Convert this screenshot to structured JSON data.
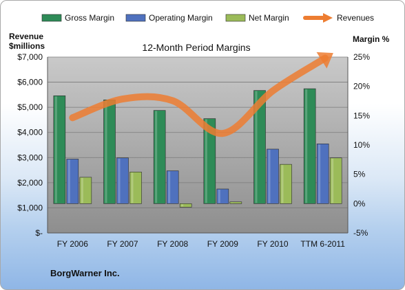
{
  "chart_data": {
    "type": "bar",
    "title": "12-Month Period Margins",
    "categories": [
      "FY 2006",
      "FY 2007",
      "FY 2008",
      "FY 2009",
      "FY 2010",
      "TTM 6-2011"
    ],
    "series": [
      {
        "name": "Gross Margin",
        "axis": "right",
        "unit": "%",
        "color": "#2e8b57",
        "values": [
          18.4,
          17.7,
          15.9,
          14.5,
          19.3,
          19.6
        ]
      },
      {
        "name": "Operating Margin",
        "axis": "right",
        "unit": "%",
        "color": "#4f71be",
        "values": [
          7.6,
          7.8,
          5.6,
          2.5,
          9.3,
          10.2
        ]
      },
      {
        "name": "Net Margin",
        "axis": "right",
        "unit": "%",
        "color": "#9bbb59",
        "values": [
          4.5,
          5.4,
          -0.6,
          0.3,
          6.7,
          7.8
        ]
      },
      {
        "name": "Revenues",
        "axis": "left",
        "unit": "$ millions",
        "color": "#ed7d31",
        "type": "line",
        "values": [
          4585,
          5329,
          5264,
          3962,
          5653,
          6900
        ]
      }
    ],
    "y_left": {
      "label_line1": "Revenue",
      "label_line2": "$millions",
      "range": [
        0,
        7000
      ],
      "ticks": [
        "$-",
        "$1,000",
        "$2,000",
        "$3,000",
        "$4,000",
        "$5,000",
        "$6,000",
        "$7,000"
      ]
    },
    "y_right": {
      "label": "Margin %",
      "range": [
        -5,
        25
      ],
      "ticks": [
        "-5%",
        "0%",
        "5%",
        "10%",
        "15%",
        "20%",
        "25%"
      ]
    },
    "legend_position": "top",
    "grid": true
  },
  "footer": {
    "company": "BorgWarner Inc."
  }
}
